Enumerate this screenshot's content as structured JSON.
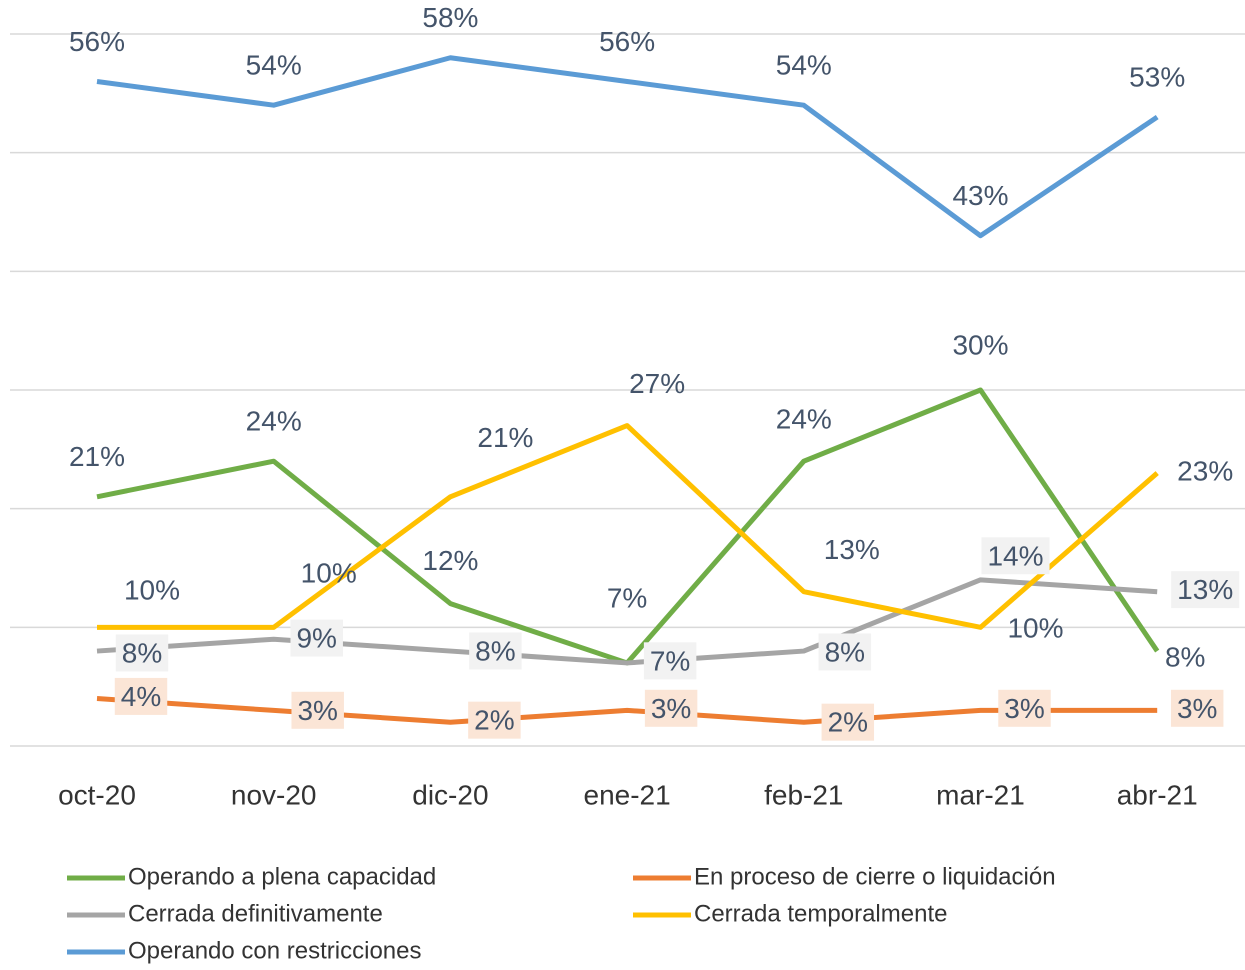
{
  "chart_data": {
    "type": "line",
    "categories": [
      "oct-20",
      "nov-20",
      "dic-20",
      "ene-21",
      "feb-21",
      "mar-21",
      "abr-21"
    ],
    "series": [
      {
        "name": "Operando a plena capacidad",
        "color": "#70ad47",
        "values": [
          21,
          24,
          12,
          7,
          24,
          30,
          8
        ],
        "value_labels": [
          "21%",
          "24%",
          "12%",
          "7%",
          "24%",
          "30%",
          "8%"
        ]
      },
      {
        "name": "En proceso de cierre o liquidación",
        "color": "#ed7d31",
        "values": [
          4,
          3,
          2,
          3,
          2,
          3,
          3
        ],
        "value_labels": [
          "4%",
          "3%",
          "2%",
          "3%",
          "2%",
          "3%",
          "3%"
        ]
      },
      {
        "name": "Cerrada definitivamente",
        "color": "#a5a5a5",
        "values": [
          8,
          9,
          8,
          7,
          8,
          14,
          13
        ],
        "value_labels": [
          "8%",
          "9%",
          "8%",
          "7%",
          "8%",
          "14%",
          "13%"
        ]
      },
      {
        "name": "Cerrada temporalmente",
        "color": "#ffc000",
        "values": [
          10,
          10,
          21,
          27,
          13,
          10,
          23
        ],
        "value_labels": [
          "10%",
          "10%",
          "21%",
          "27%",
          "13%",
          "10%",
          "23%"
        ]
      },
      {
        "name": "Operando con restricciones",
        "color": "#5b9bd5",
        "values": [
          56,
          54,
          58,
          56,
          54,
          43,
          53
        ],
        "value_labels": [
          "56%",
          "54%",
          "58%",
          "56%",
          "54%",
          "43%",
          "53%"
        ]
      }
    ],
    "ylim": [
      0,
      60
    ],
    "yticks": [
      0,
      10,
      20,
      30,
      40,
      50,
      60
    ],
    "grid": true
  }
}
